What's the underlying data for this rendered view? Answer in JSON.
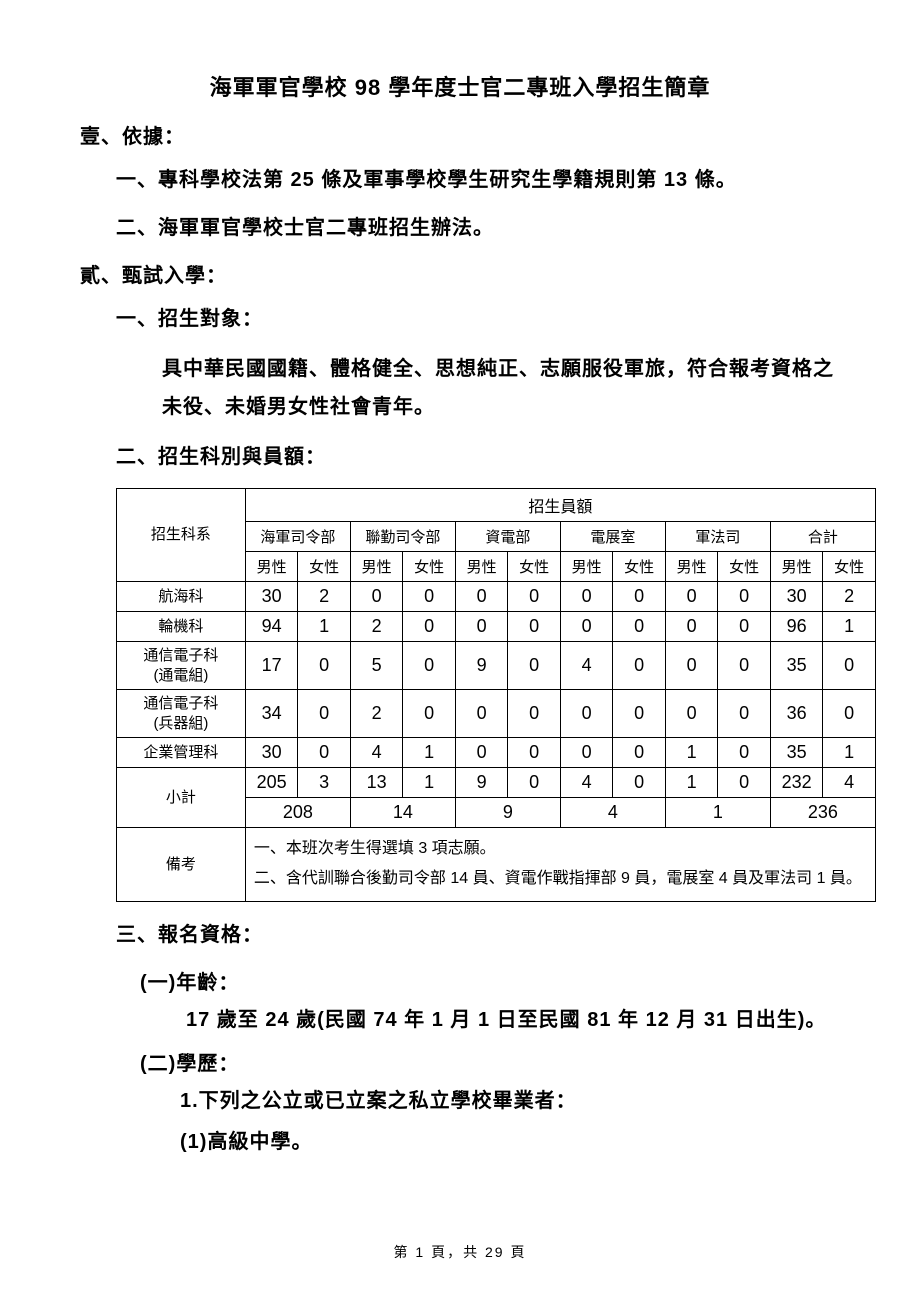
{
  "title": "海軍軍官學校 98 學年度士官二專班入學招生簡章",
  "section1": {
    "heading": "壹、依據：",
    "items": [
      "一、專科學校法第 25 條及軍事學校學生研究生學籍規則第 13 條。",
      "二、海軍軍官學校士官二專班招生辦法。"
    ]
  },
  "section2": {
    "heading": "貳、甄試入學：",
    "sub1": {
      "heading": "一、招生對象：",
      "body": "具中華民國國籍、體格健全、思想純正、志願服役軍旅，符合報考資格之未役、未婚男女性社會青年。"
    },
    "sub2": {
      "heading": "二、招生科別與員額："
    },
    "sub3": {
      "heading": "三、報名資格：",
      "age_label": "(一)年齡：",
      "age_body": "17 歲至 24 歲(民國 74 年 1 月 1 日至民國 81 年 12 月 31 日出生)。",
      "edu_label": "(二)學歷：",
      "edu_item1": "1.下列之公立或已立案之私立學校畢業者：",
      "edu_sub1": "(1)高級中學。"
    }
  },
  "table": {
    "header_dept": "招生科系",
    "header_quota": "招生員額",
    "departments": [
      "海軍司令部",
      "聯勤司令部",
      "資電部",
      "電展室",
      "軍法司",
      "合計"
    ],
    "genders": [
      "男性",
      "女性"
    ],
    "rows": [
      {
        "label": "航海科",
        "cells": [
          "30",
          "2",
          "0",
          "0",
          "0",
          "0",
          "0",
          "0",
          "0",
          "0",
          "30",
          "2"
        ]
      },
      {
        "label": "輪機科",
        "cells": [
          "94",
          "1",
          "2",
          "0",
          "0",
          "0",
          "0",
          "0",
          "0",
          "0",
          "96",
          "1"
        ]
      },
      {
        "label": "通信電子科\n(通電組)",
        "cells": [
          "17",
          "0",
          "5",
          "0",
          "9",
          "0",
          "4",
          "0",
          "0",
          "0",
          "35",
          "0"
        ]
      },
      {
        "label": "通信電子科\n(兵器組)",
        "cells": [
          "34",
          "0",
          "2",
          "0",
          "0",
          "0",
          "0",
          "0",
          "0",
          "0",
          "36",
          "0"
        ]
      },
      {
        "label": "企業管理科",
        "cells": [
          "30",
          "0",
          "4",
          "1",
          "0",
          "0",
          "0",
          "0",
          "1",
          "0",
          "35",
          "1"
        ]
      }
    ],
    "subtotal_label": "小計",
    "subtotal_split": [
      "205",
      "3",
      "13",
      "1",
      "9",
      "0",
      "4",
      "0",
      "1",
      "0",
      "232",
      "4"
    ],
    "subtotal_merged": [
      "208",
      "14",
      "9",
      "4",
      "1",
      "236"
    ],
    "remark_label": "備考",
    "remark_lines": [
      "一、本班次考生得選填 3 項志願。",
      "二、含代訓聯合後勤司令部 14 員、資電作戰指揮部 9 員，電展室 4 員及軍法司 1 員。"
    ]
  },
  "footer": "第 1 頁，共 29 頁"
}
